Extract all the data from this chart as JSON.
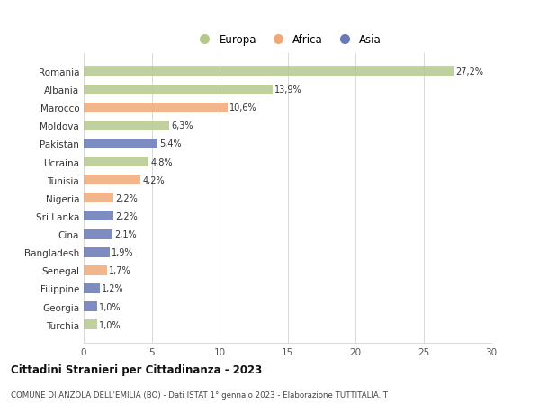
{
  "categories": [
    "Romania",
    "Albania",
    "Marocco",
    "Moldova",
    "Pakistan",
    "Ucraina",
    "Tunisia",
    "Nigeria",
    "Sri Lanka",
    "Cina",
    "Bangladesh",
    "Senegal",
    "Filippine",
    "Georgia",
    "Turchia"
  ],
  "values": [
    27.2,
    13.9,
    10.6,
    6.3,
    5.4,
    4.8,
    4.2,
    2.2,
    2.2,
    2.1,
    1.9,
    1.7,
    1.2,
    1.0,
    1.0
  ],
  "labels": [
    "27,2%",
    "13,9%",
    "10,6%",
    "6,3%",
    "5,4%",
    "4,8%",
    "4,2%",
    "2,2%",
    "2,2%",
    "2,1%",
    "1,9%",
    "1,7%",
    "1,2%",
    "1,0%",
    "1,0%"
  ],
  "continents": [
    "Europa",
    "Europa",
    "Africa",
    "Europa",
    "Asia",
    "Europa",
    "Africa",
    "Africa",
    "Asia",
    "Asia",
    "Asia",
    "Africa",
    "Asia",
    "Asia",
    "Europa"
  ],
  "colors": {
    "Europa": "#b5c98e",
    "Africa": "#f0a878",
    "Asia": "#6878b8"
  },
  "legend_labels": [
    "Europa",
    "Africa",
    "Asia"
  ],
  "xlim": [
    0,
    30
  ],
  "xticks": [
    0,
    5,
    10,
    15,
    20,
    25,
    30
  ],
  "title": "Cittadini Stranieri per Cittadinanza - 2023",
  "subtitle": "COMUNE DI ANZOLA DELL'EMILIA (BO) - Dati ISTAT 1° gennaio 2023 - Elaborazione TUTTITALIA.IT",
  "background_color": "#ffffff",
  "grid_color": "#d8d8d8"
}
